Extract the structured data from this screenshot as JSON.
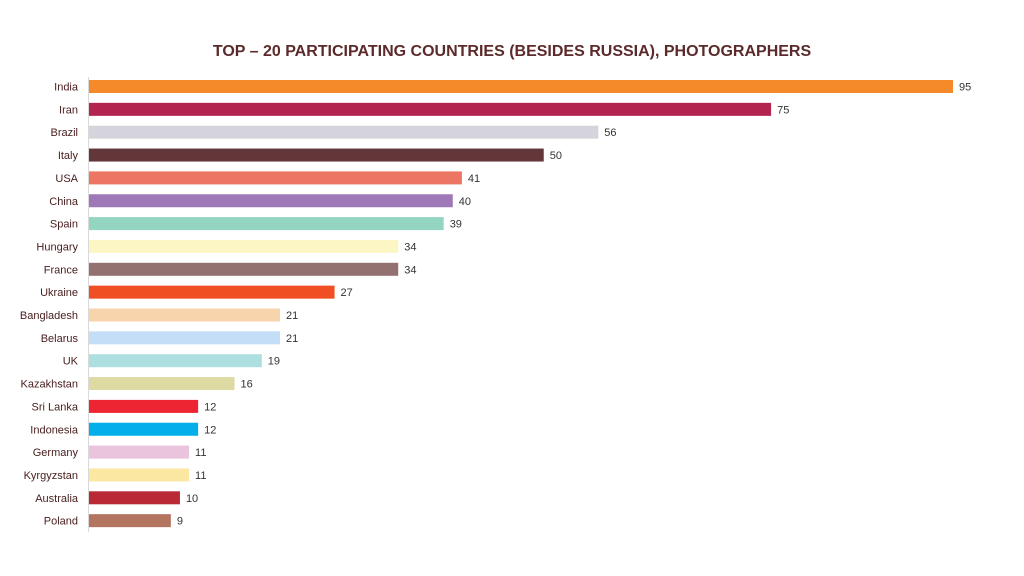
{
  "chart_data": {
    "type": "bar",
    "orientation": "horizontal",
    "title": "TOP – 20 PARTICIPATING COUNTRIES (BESIDES RUSSIA), PHOTOGRAPHERS",
    "xlabel": "",
    "ylabel": "",
    "xlim": [
      0,
      95
    ],
    "grid": false,
    "legend": "none",
    "data_labels": true,
    "categories": [
      "India",
      "Iran",
      "Brazil",
      "Italy",
      "USA",
      "China",
      "Spain",
      "Hungary",
      "France",
      "Ukraine",
      "Bangladesh",
      "Belarus",
      "UK",
      "Kazakhstan",
      "Sri Lanka",
      "Indonesia",
      "Germany",
      "Kyrgyzstan",
      "Australia",
      "Poland"
    ],
    "values": [
      95,
      75,
      56,
      50,
      41,
      40,
      39,
      34,
      34,
      27,
      21,
      21,
      19,
      16,
      12,
      12,
      11,
      11,
      10,
      9
    ],
    "colors": [
      "#f58a2a",
      "#b3254f",
      "#d5d4dc",
      "#63363a",
      "#ec7563",
      "#9f79b7",
      "#94d5c1",
      "#fcf6c4",
      "#927170",
      "#f04f23",
      "#f8d4ac",
      "#c3def6",
      "#aedfe0",
      "#dddba3",
      "#ed2431",
      "#04aee9",
      "#eac4dc",
      "#fbe7a2",
      "#b92a36",
      "#b47560"
    ]
  }
}
